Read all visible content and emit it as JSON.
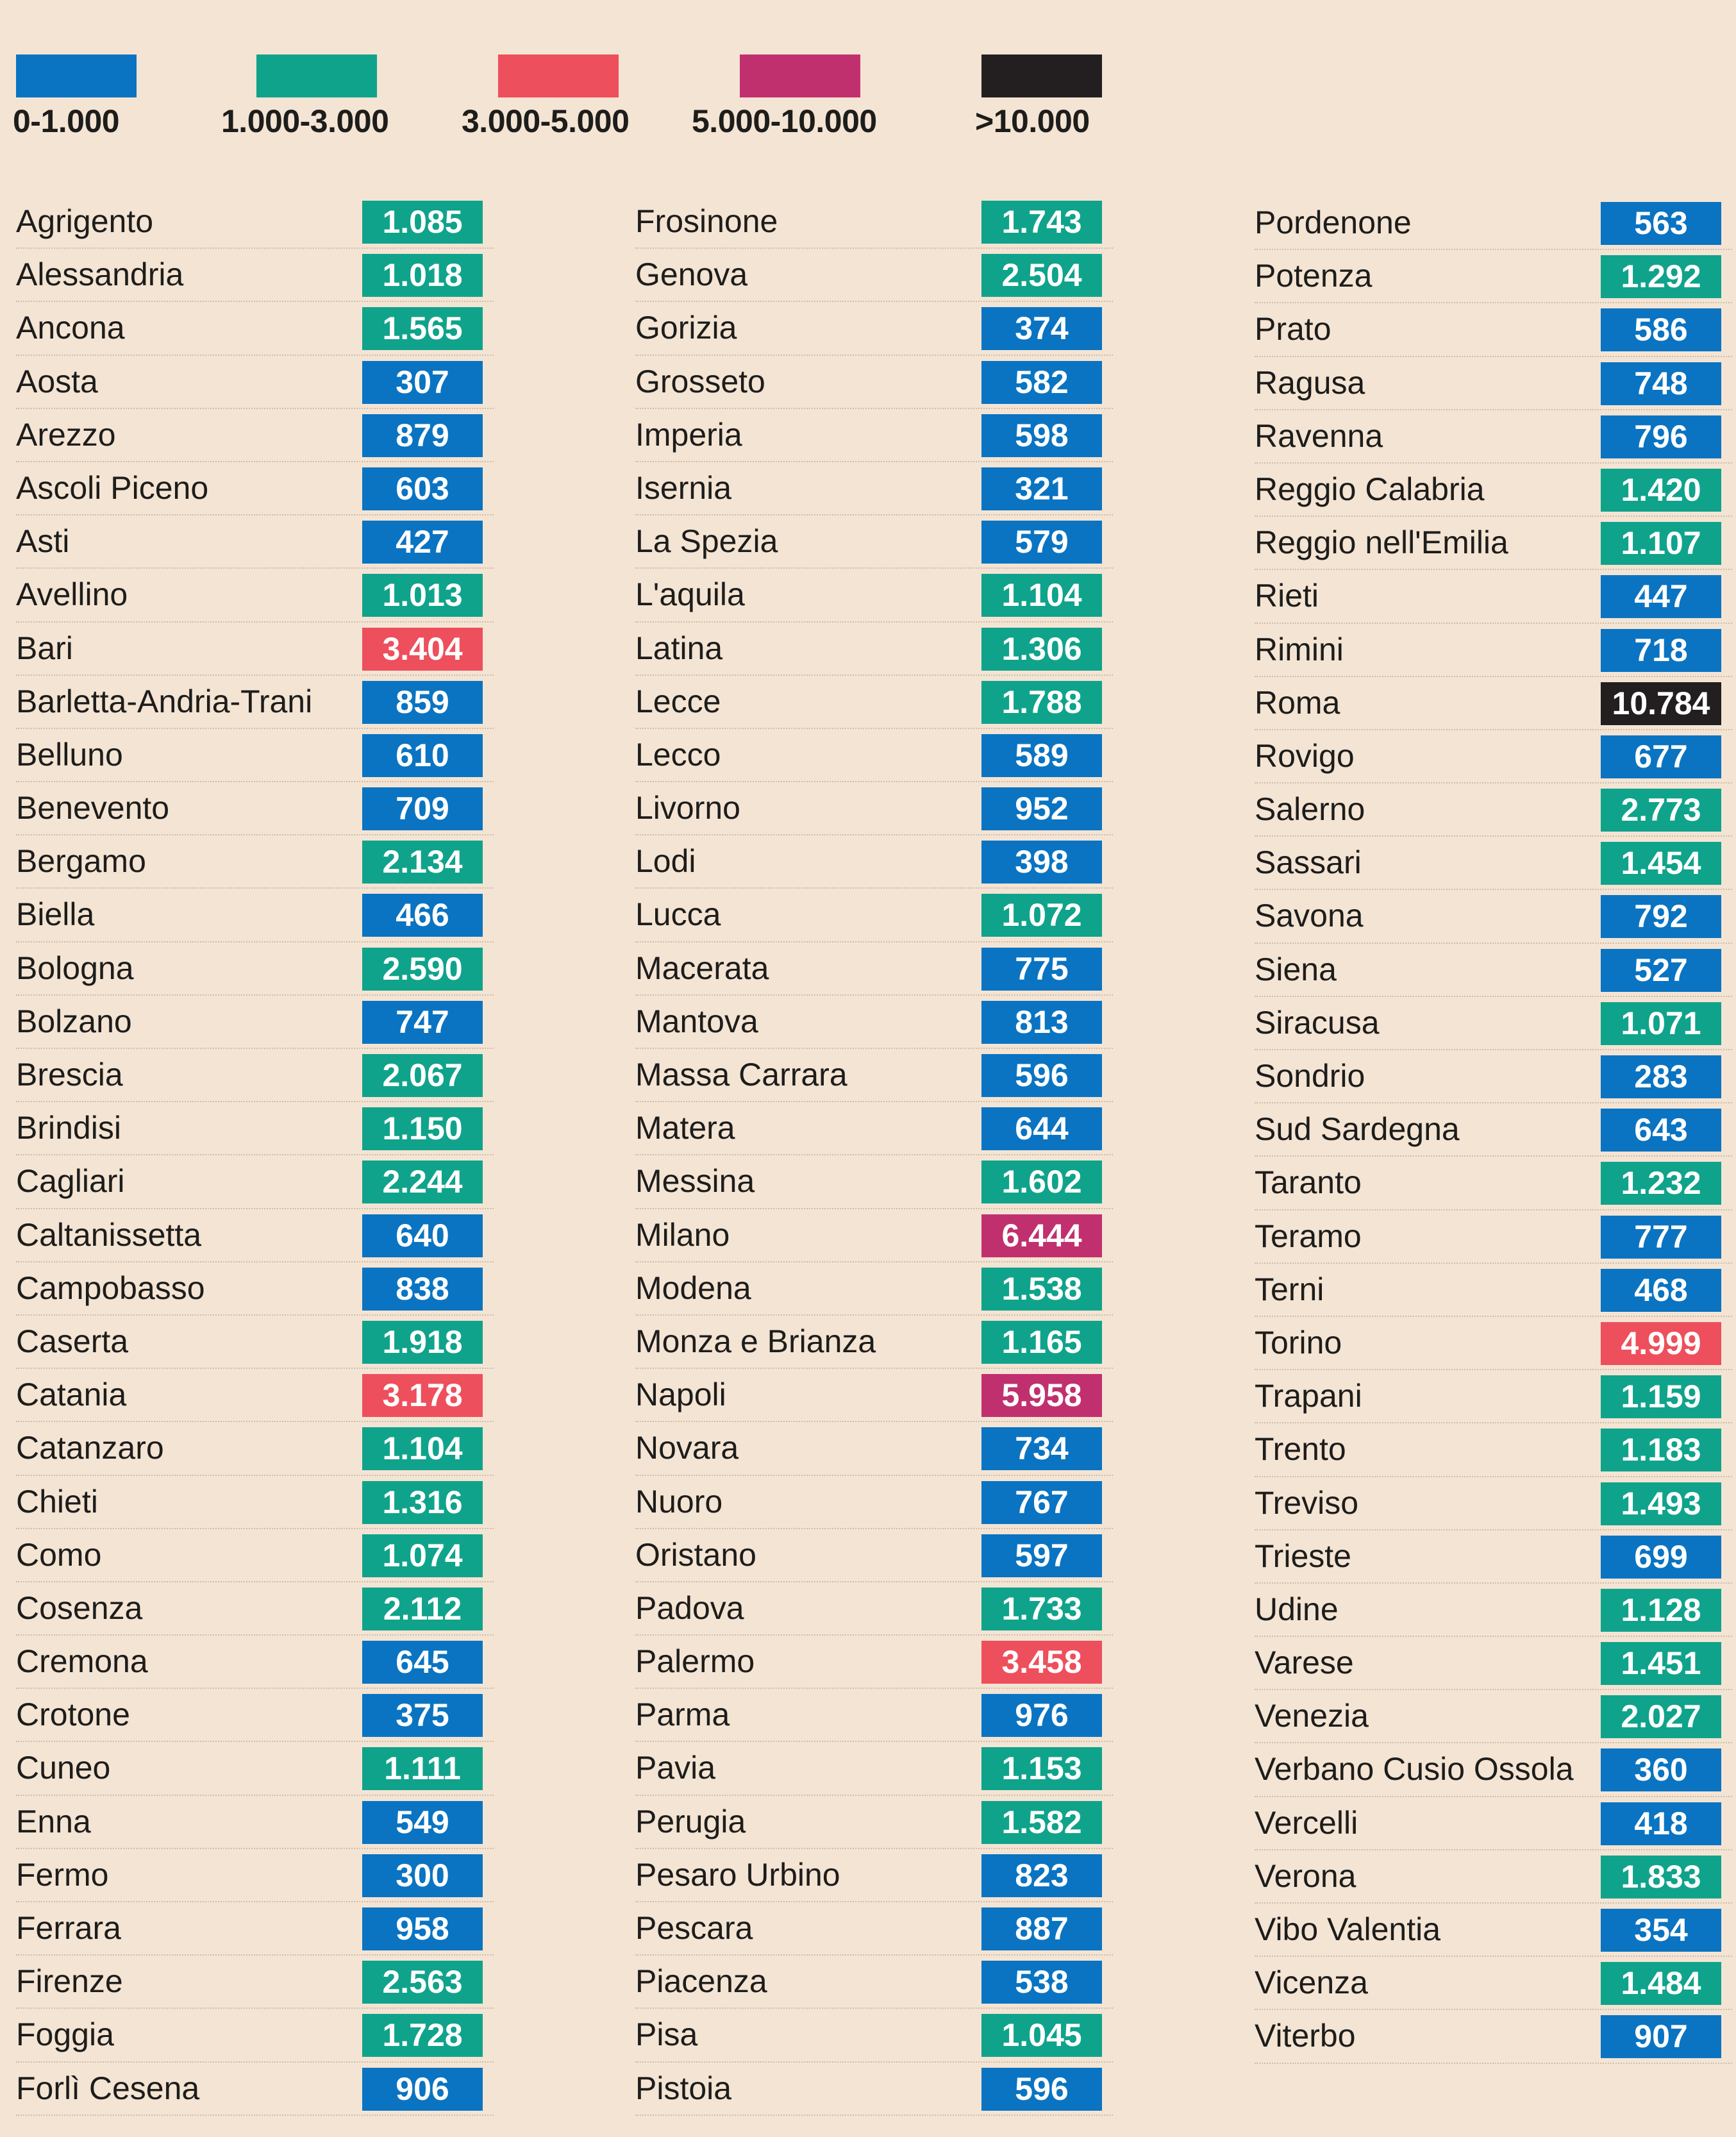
{
  "legend": [
    {
      "label": "0-1.000",
      "color": "#0a74c2"
    },
    {
      "label": "1.000-3.000",
      "color": "#10a38b"
    },
    {
      "label": "3.000-5.000",
      "color": "#ee4f5c"
    },
    {
      "label": "5.000-10.000",
      "color": "#c1306e"
    },
    {
      "label": ">10.000",
      "color": "#231f20"
    }
  ],
  "chart_data": {
    "type": "table",
    "columns": [
      [
        {
          "name": "Agrigento",
          "value": "1.085"
        },
        {
          "name": "Alessandria",
          "value": "1.018"
        },
        {
          "name": "Ancona",
          "value": "1.565"
        },
        {
          "name": "Aosta",
          "value": "307"
        },
        {
          "name": "Arezzo",
          "value": "879"
        },
        {
          "name": "Ascoli Piceno",
          "value": "603"
        },
        {
          "name": "Asti",
          "value": "427"
        },
        {
          "name": "Avellino",
          "value": "1.013"
        },
        {
          "name": "Bari",
          "value": "3.404"
        },
        {
          "name": "Barletta-Andria-Trani",
          "value": "859"
        },
        {
          "name": "Belluno",
          "value": "610"
        },
        {
          "name": "Benevento",
          "value": "709"
        },
        {
          "name": "Bergamo",
          "value": "2.134"
        },
        {
          "name": "Biella",
          "value": "466"
        },
        {
          "name": "Bologna",
          "value": "2.590"
        },
        {
          "name": "Bolzano",
          "value": "747"
        },
        {
          "name": "Brescia",
          "value": "2.067"
        },
        {
          "name": "Brindisi",
          "value": "1.150"
        },
        {
          "name": "Cagliari",
          "value": "2.244"
        },
        {
          "name": "Caltanissetta",
          "value": "640"
        },
        {
          "name": "Campobasso",
          "value": "838"
        },
        {
          "name": "Caserta",
          "value": "1.918"
        },
        {
          "name": "Catania",
          "value": "3.178"
        },
        {
          "name": "Catanzaro",
          "value": "1.104"
        },
        {
          "name": "Chieti",
          "value": "1.316"
        },
        {
          "name": "Como",
          "value": "1.074"
        },
        {
          "name": "Cosenza",
          "value": "2.112"
        },
        {
          "name": "Cremona",
          "value": "645"
        },
        {
          "name": "Crotone",
          "value": "375"
        },
        {
          "name": "Cuneo",
          "value": "1.111"
        },
        {
          "name": "Enna",
          "value": "549"
        },
        {
          "name": "Fermo",
          "value": "300"
        },
        {
          "name": "Ferrara",
          "value": "958"
        },
        {
          "name": "Firenze",
          "value": "2.563"
        },
        {
          "name": "Foggia",
          "value": "1.728"
        },
        {
          "name": "Forlì Cesena",
          "value": "906"
        }
      ],
      [
        {
          "name": "Frosinone",
          "value": "1.743"
        },
        {
          "name": "Genova",
          "value": "2.504"
        },
        {
          "name": "Gorizia",
          "value": "374"
        },
        {
          "name": "Grosseto",
          "value": "582"
        },
        {
          "name": "Imperia",
          "value": "598"
        },
        {
          "name": "Isernia",
          "value": "321"
        },
        {
          "name": "La Spezia",
          "value": "579"
        },
        {
          "name": "L'aquila",
          "value": "1.104"
        },
        {
          "name": "Latina",
          "value": "1.306"
        },
        {
          "name": "Lecce",
          "value": "1.788"
        },
        {
          "name": "Lecco",
          "value": "589"
        },
        {
          "name": "Livorno",
          "value": "952"
        },
        {
          "name": "Lodi",
          "value": "398"
        },
        {
          "name": "Lucca",
          "value": "1.072"
        },
        {
          "name": "Macerata",
          "value": "775"
        },
        {
          "name": "Mantova",
          "value": "813"
        },
        {
          "name": "Massa Carrara",
          "value": "596"
        },
        {
          "name": "Matera",
          "value": "644"
        },
        {
          "name": "Messina",
          "value": "1.602"
        },
        {
          "name": "Milano",
          "value": "6.444"
        },
        {
          "name": "Modena",
          "value": "1.538"
        },
        {
          "name": "Monza e Brianza",
          "value": "1.165"
        },
        {
          "name": "Napoli",
          "value": "5.958"
        },
        {
          "name": "Novara",
          "value": "734"
        },
        {
          "name": "Nuoro",
          "value": "767"
        },
        {
          "name": "Oristano",
          "value": "597"
        },
        {
          "name": "Padova",
          "value": "1.733"
        },
        {
          "name": "Palermo",
          "value": "3.458"
        },
        {
          "name": "Parma",
          "value": "976"
        },
        {
          "name": "Pavia",
          "value": "1.153"
        },
        {
          "name": "Perugia",
          "value": "1.582"
        },
        {
          "name": "Pesaro Urbino",
          "value": "823"
        },
        {
          "name": "Pescara",
          "value": "887"
        },
        {
          "name": "Piacenza",
          "value": "538"
        },
        {
          "name": "Pisa",
          "value": "1.045"
        },
        {
          "name": "Pistoia",
          "value": "596"
        }
      ],
      [
        {
          "name": "Pordenone",
          "value": "563"
        },
        {
          "name": "Potenza",
          "value": "1.292"
        },
        {
          "name": "Prato",
          "value": "586"
        },
        {
          "name": "Ragusa",
          "value": "748"
        },
        {
          "name": "Ravenna",
          "value": "796"
        },
        {
          "name": "Reggio Calabria",
          "value": "1.420"
        },
        {
          "name": "Reggio nell'Emilia",
          "value": "1.107"
        },
        {
          "name": "Rieti",
          "value": "447"
        },
        {
          "name": "Rimini",
          "value": "718"
        },
        {
          "name": "Roma",
          "value": "10.784"
        },
        {
          "name": "Rovigo",
          "value": "677"
        },
        {
          "name": "Salerno",
          "value": "2.773"
        },
        {
          "name": "Sassari",
          "value": "1.454"
        },
        {
          "name": "Savona",
          "value": "792"
        },
        {
          "name": "Siena",
          "value": "527"
        },
        {
          "name": "Siracusa",
          "value": "1.071"
        },
        {
          "name": "Sondrio",
          "value": "283"
        },
        {
          "name": "Sud Sardegna",
          "value": "643"
        },
        {
          "name": "Taranto",
          "value": "1.232"
        },
        {
          "name": "Teramo",
          "value": "777"
        },
        {
          "name": "Terni",
          "value": "468"
        },
        {
          "name": "Torino",
          "value": "4.999"
        },
        {
          "name": "Trapani",
          "value": "1.159"
        },
        {
          "name": "Trento",
          "value": "1.183"
        },
        {
          "name": "Treviso",
          "value": "1.493"
        },
        {
          "name": "Trieste",
          "value": "699"
        },
        {
          "name": "Udine",
          "value": "1.128"
        },
        {
          "name": "Varese",
          "value": "1.451"
        },
        {
          "name": "Venezia",
          "value": "2.027"
        },
        {
          "name": "Verbano Cusio Ossola",
          "value": "360"
        },
        {
          "name": "Vercelli",
          "value": "418"
        },
        {
          "name": "Verona",
          "value": "1.833"
        },
        {
          "name": "Vibo Valentia",
          "value": "354"
        },
        {
          "name": "Vicenza",
          "value": "1.484"
        },
        {
          "name": "Viterbo",
          "value": "907"
        }
      ]
    ]
  }
}
